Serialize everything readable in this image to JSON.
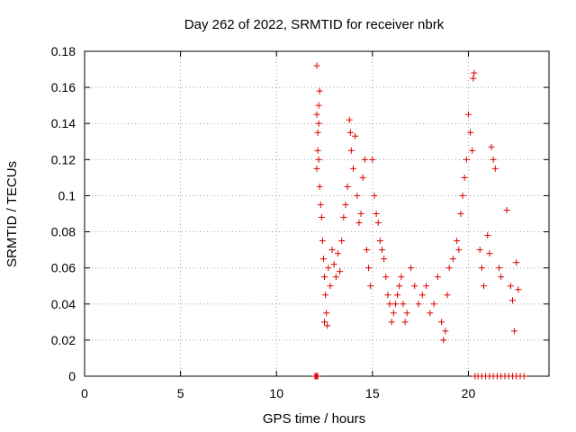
{
  "chart_data": {
    "type": "scatter",
    "title": "Day 262 of 2022, SRMTID for receiver nbrk",
    "xlabel": "GPS time / hours",
    "ylabel": "SRMTID / TECUs",
    "xlim": [
      0,
      24.2
    ],
    "ylim": [
      0,
      0.18
    ],
    "xticks": [
      0,
      5,
      10,
      15,
      20
    ],
    "yticks": [
      0,
      0.02,
      0.04,
      0.06,
      0.08,
      0.1,
      0.12,
      0.14,
      0.16,
      0.18
    ],
    "grid": true,
    "legend": "none",
    "marker": "+",
    "color": "#dd0000",
    "series": [
      {
        "points": [
          [
            12.0,
            0
          ],
          [
            12.05,
            0
          ],
          [
            12.1,
            0
          ],
          [
            12.15,
            0
          ],
          [
            12.1,
            0.172
          ],
          [
            12.15,
            0.125
          ],
          [
            12.2,
            0.15
          ],
          [
            12.25,
            0.158
          ],
          [
            12.1,
            0.145
          ],
          [
            12.2,
            0.12
          ],
          [
            12.1,
            0.115
          ],
          [
            12.25,
            0.105
          ],
          [
            12.3,
            0.095
          ],
          [
            12.2,
            0.14
          ],
          [
            12.15,
            0.135
          ],
          [
            12.35,
            0.088
          ],
          [
            12.4,
            0.075
          ],
          [
            12.45,
            0.065
          ],
          [
            12.5,
            0.055
          ],
          [
            12.55,
            0.045
          ],
          [
            12.6,
            0.035
          ],
          [
            12.5,
            0.03
          ],
          [
            12.65,
            0.028
          ],
          [
            12.7,
            0.06
          ],
          [
            12.8,
            0.05
          ],
          [
            12.9,
            0.07
          ],
          [
            13.0,
            0.062
          ],
          [
            13.1,
            0.055
          ],
          [
            13.2,
            0.068
          ],
          [
            13.3,
            0.058
          ],
          [
            13.4,
            0.075
          ],
          [
            13.5,
            0.088
          ],
          [
            13.6,
            0.095
          ],
          [
            13.7,
            0.105
          ],
          [
            13.8,
            0.142
          ],
          [
            13.85,
            0.135
          ],
          [
            13.9,
            0.125
          ],
          [
            14.0,
            0.115
          ],
          [
            14.1,
            0.133
          ],
          [
            14.2,
            0.1
          ],
          [
            14.3,
            0.085
          ],
          [
            14.4,
            0.09
          ],
          [
            14.5,
            0.11
          ],
          [
            14.6,
            0.12
          ],
          [
            14.7,
            0.07
          ],
          [
            14.8,
            0.06
          ],
          [
            14.9,
            0.05
          ],
          [
            15.0,
            0.12
          ],
          [
            15.1,
            0.1
          ],
          [
            15.2,
            0.09
          ],
          [
            15.3,
            0.085
          ],
          [
            15.4,
            0.075
          ],
          [
            15.5,
            0.07
          ],
          [
            15.6,
            0.065
          ],
          [
            15.7,
            0.055
          ],
          [
            15.8,
            0.045
          ],
          [
            15.9,
            0.04
          ],
          [
            16.0,
            0.03
          ],
          [
            16.1,
            0.035
          ],
          [
            16.2,
            0.04
          ],
          [
            16.3,
            0.045
          ],
          [
            16.4,
            0.05
          ],
          [
            16.5,
            0.055
          ],
          [
            16.6,
            0.04
          ],
          [
            16.7,
            0.03
          ],
          [
            16.8,
            0.035
          ],
          [
            17.0,
            0.06
          ],
          [
            17.2,
            0.05
          ],
          [
            17.4,
            0.04
          ],
          [
            17.6,
            0.045
          ],
          [
            17.8,
            0.05
          ],
          [
            18.0,
            0.035
          ],
          [
            18.2,
            0.04
          ],
          [
            18.4,
            0.055
          ],
          [
            18.6,
            0.03
          ],
          [
            18.7,
            0.02
          ],
          [
            18.8,
            0.025
          ],
          [
            18.9,
            0.045
          ],
          [
            19.0,
            0.06
          ],
          [
            19.2,
            0.065
          ],
          [
            19.4,
            0.075
          ],
          [
            19.5,
            0.07
          ],
          [
            19.6,
            0.09
          ],
          [
            19.7,
            0.1
          ],
          [
            19.8,
            0.11
          ],
          [
            19.9,
            0.12
          ],
          [
            20.0,
            0.145
          ],
          [
            20.1,
            0.135
          ],
          [
            20.2,
            0.125
          ],
          [
            20.25,
            0.165
          ],
          [
            20.3,
            0.168
          ],
          [
            20.35,
            0.0
          ],
          [
            20.5,
            0.0
          ],
          [
            20.7,
            0.0
          ],
          [
            20.9,
            0.0
          ],
          [
            21.1,
            0.0
          ],
          [
            21.3,
            0.0
          ],
          [
            21.5,
            0.0
          ],
          [
            21.7,
            0.0
          ],
          [
            21.9,
            0.0
          ],
          [
            22.1,
            0.0
          ],
          [
            22.3,
            0.0
          ],
          [
            22.5,
            0.0
          ],
          [
            22.7,
            0.0
          ],
          [
            22.9,
            0.0
          ],
          [
            20.6,
            0.07
          ],
          [
            20.7,
            0.06
          ],
          [
            20.8,
            0.05
          ],
          [
            21.0,
            0.078
          ],
          [
            21.1,
            0.068
          ],
          [
            21.2,
            0.127
          ],
          [
            21.3,
            0.12
          ],
          [
            21.4,
            0.115
          ],
          [
            21.6,
            0.06
          ],
          [
            21.7,
            0.055
          ],
          [
            22.0,
            0.092
          ],
          [
            22.2,
            0.05
          ],
          [
            22.3,
            0.042
          ],
          [
            22.4,
            0.025
          ],
          [
            22.5,
            0.063
          ],
          [
            22.6,
            0.048
          ]
        ]
      }
    ]
  }
}
